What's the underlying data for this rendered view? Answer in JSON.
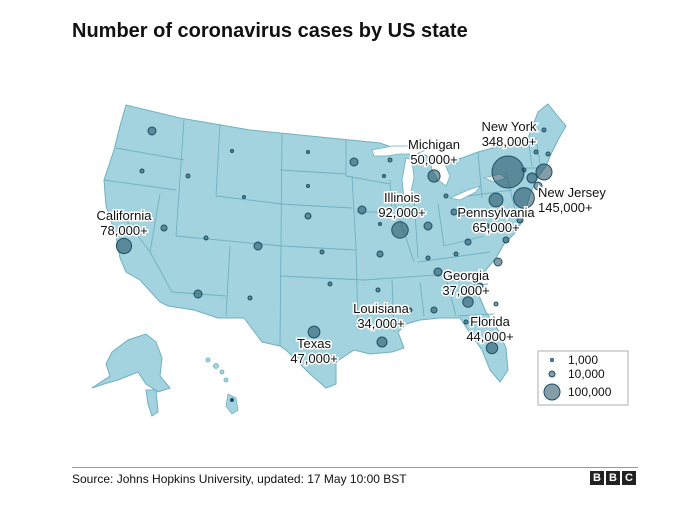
{
  "title": "Number of coronavirus cases by US state",
  "source": "Source: Johns Hopkins University, updated: 17 May 10:00 BST",
  "logo_letters": [
    "B",
    "B",
    "C"
  ],
  "colors": {
    "land": "#a3d3de",
    "border": "#6fb0c2",
    "bubble": "#1f4e63",
    "bubble_fill_opacity": 0.55,
    "label_halo": "#ffffff"
  },
  "legend": {
    "items": [
      {
        "label": "1,000",
        "value": 1000
      },
      {
        "label": "10,000",
        "value": 10000
      },
      {
        "label": "100,000",
        "value": 100000
      }
    ]
  },
  "state_labels": [
    {
      "name": "New York",
      "value": "348,000+",
      "cases": 348000
    },
    {
      "name": "Michigan",
      "value": "50,000+",
      "cases": 50000
    },
    {
      "name": "New Jersey",
      "value": "145,000+",
      "cases": 145000
    },
    {
      "name": "Illinois",
      "value": "92,000+",
      "cases": 92000
    },
    {
      "name": "Pennsylvania",
      "value": "65,000+",
      "cases": 65000
    },
    {
      "name": "California",
      "value": "78,000+",
      "cases": 78000
    },
    {
      "name": "Georgia",
      "value": "37,000+",
      "cases": 37000
    },
    {
      "name": "Louisiana",
      "value": "34,000+",
      "cases": 34000
    },
    {
      "name": "Florida",
      "value": "44,000+",
      "cases": 44000
    },
    {
      "name": "Texas",
      "value": "47,000+",
      "cases": 47000
    }
  ]
}
